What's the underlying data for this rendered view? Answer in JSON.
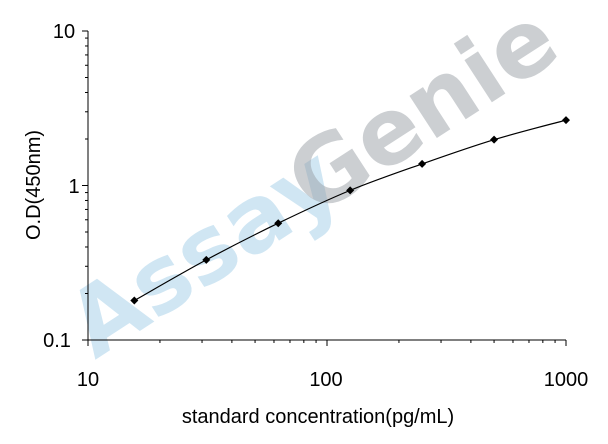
{
  "chart_data": {
    "type": "line",
    "title": "",
    "xlabel": "standard concentration(pg/mL)",
    "ylabel": "O.D(450nm)",
    "x_scale": "log",
    "y_scale": "log",
    "xlim": [
      10,
      1000
    ],
    "ylim": [
      0.1,
      10
    ],
    "x_tick_labels": [
      "10",
      "100",
      "1000"
    ],
    "y_tick_labels": [
      "10",
      "1",
      "0.1"
    ],
    "grid": false,
    "legend": "none",
    "series": [
      {
        "x": [
          15.625,
          31.25,
          62.5,
          125,
          250,
          500,
          1000
        ],
        "y": [
          0.18,
          0.33,
          0.57,
          0.93,
          1.38,
          1.98,
          2.65
        ]
      }
    ],
    "watermark": {
      "part1": "Assay",
      "part2": "Genie"
    },
    "colors": {
      "line": "#000000",
      "marker": "#000000",
      "watermark_blue": "#aad2ea",
      "watermark_gray": "#9aa0a6"
    }
  }
}
